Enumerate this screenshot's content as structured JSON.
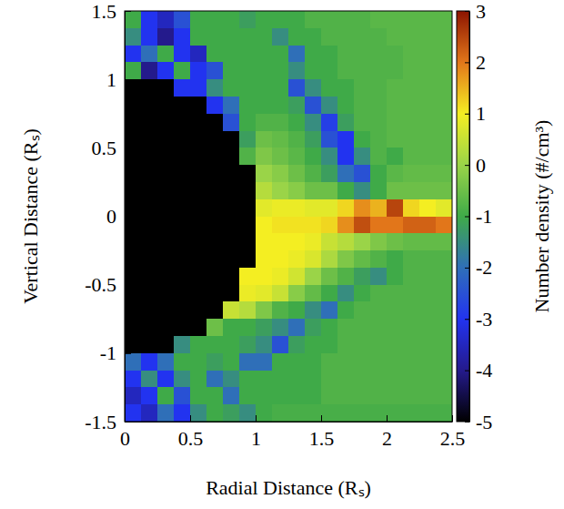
{
  "chart_data": {
    "type": "heatmap",
    "x_label": "Radial Distance (Rₛ)",
    "y_label": "Vertical Distance (Rₛ)",
    "colorbar_label": "Number density (#/cm³)",
    "x": [
      0.0625,
      0.1875,
      0.3125,
      0.4375,
      0.5625,
      0.6875,
      0.8125,
      0.9375,
      1.0625,
      1.1875,
      1.3125,
      1.4375,
      1.5625,
      1.6875,
      1.8125,
      1.9375,
      2.0625,
      2.1875,
      2.3125,
      2.4375
    ],
    "y": [
      1.4375,
      1.3125,
      1.1875,
      1.0625,
      0.9375,
      0.8125,
      0.6875,
      0.5625,
      0.4375,
      0.3125,
      0.1875,
      0.0625,
      -0.0625,
      -0.1875,
      -0.3125,
      -0.4375,
      -0.5625,
      -0.6875,
      -0.8125,
      -0.9375,
      -1.0625,
      -1.1875,
      -1.3125,
      -1.4375
    ],
    "z": [
      [
        -1,
        -3,
        -3.5,
        -2.5,
        -1,
        -1,
        -1,
        -1.2,
        -1,
        -1,
        -1,
        -0.8,
        -0.8,
        -0.8,
        -0.8,
        -0.7,
        -0.7,
        -0.7,
        -0.7,
        -0.7
      ],
      [
        -1.5,
        -3,
        -4,
        -3,
        -1,
        -1,
        -1,
        -1,
        -1,
        -1.5,
        -1,
        -1,
        -0.8,
        -0.8,
        -0.8,
        -0.8,
        -0.7,
        -0.7,
        -0.7,
        -0.7
      ],
      [
        -3,
        -2,
        -1,
        -3,
        -3.5,
        -1,
        -1,
        -1,
        -1,
        -1,
        -2,
        -1,
        -1,
        -0.8,
        -0.8,
        -0.8,
        -0.8,
        -0.7,
        -0.7,
        -0.7
      ],
      [
        -1,
        -4,
        -3,
        -1,
        -3,
        -2.5,
        -1,
        -1,
        -1,
        -1,
        -1.5,
        -1,
        -1,
        -0.8,
        -0.8,
        -0.8,
        -0.8,
        -0.7,
        -0.7,
        -0.7
      ],
      [
        null,
        null,
        null,
        -3,
        -3,
        -1.5,
        -1,
        -1,
        -1,
        -1,
        -2.5,
        -1.5,
        -1,
        -1,
        -0.8,
        -0.8,
        -0.7,
        -0.7,
        -0.7,
        -0.7
      ],
      [
        null,
        null,
        null,
        null,
        null,
        -3,
        -2,
        -1,
        -1,
        -1,
        -1.2,
        -2.5,
        -1.5,
        -1,
        -0.8,
        -0.8,
        -0.7,
        -0.7,
        -0.7,
        -0.7
      ],
      [
        null,
        null,
        null,
        null,
        null,
        null,
        -2.5,
        -1,
        -0.8,
        -0.8,
        -1,
        -1.5,
        -2.8,
        -1.2,
        -0.8,
        -0.8,
        -0.7,
        -0.7,
        -0.7,
        -0.7
      ],
      [
        null,
        null,
        null,
        null,
        null,
        null,
        null,
        -1.2,
        -0.5,
        -0.6,
        -0.8,
        -1.2,
        -2.5,
        -3,
        -1,
        -0.8,
        -0.7,
        -0.7,
        -0.7,
        -0.7
      ],
      [
        null,
        null,
        null,
        null,
        null,
        null,
        null,
        -0.8,
        -0.3,
        -0.5,
        -0.7,
        -1,
        -1.5,
        -3,
        -1.5,
        -0.8,
        -1,
        -0.7,
        -0.7,
        -0.7
      ],
      [
        null,
        null,
        null,
        null,
        null,
        null,
        null,
        null,
        0,
        -0.2,
        -0.5,
        -0.8,
        -1.2,
        -2,
        -2.5,
        -1,
        -0.7,
        -0.6,
        -0.6,
        -0.6
      ],
      [
        null,
        null,
        null,
        null,
        null,
        null,
        null,
        null,
        0.3,
        0,
        -0.2,
        -0.5,
        -0.5,
        -1,
        -1.5,
        -1,
        -0.5,
        -0.5,
        -0.5,
        -0.5
      ],
      [
        null,
        null,
        null,
        null,
        null,
        null,
        null,
        null,
        0.8,
        0.9,
        0.9,
        0.8,
        0.8,
        1.2,
        1.8,
        1.5,
        2.5,
        1.2,
        1,
        0.8
      ],
      [
        null,
        null,
        null,
        null,
        null,
        null,
        null,
        null,
        1,
        1.1,
        1.1,
        1.1,
        1.2,
        1.8,
        2.4,
        2,
        2,
        2.2,
        2.2,
        2
      ],
      [
        null,
        null,
        null,
        null,
        null,
        null,
        null,
        null,
        1,
        1,
        1,
        0.9,
        0.5,
        0.3,
        0,
        -0.3,
        -0.5,
        -0.6,
        -0.6,
        -0.6
      ],
      [
        null,
        null,
        null,
        null,
        null,
        null,
        null,
        null,
        1,
        1,
        0.9,
        0.7,
        0.2,
        -0.3,
        -0.6,
        -0.8,
        -1,
        -0.8,
        -0.8,
        -0.8
      ],
      [
        null,
        null,
        null,
        null,
        null,
        null,
        null,
        1,
        1,
        0.9,
        0.6,
        0,
        -0.5,
        -0.8,
        -1.2,
        -1.5,
        -1,
        -0.8,
        -0.8,
        -0.8
      ],
      [
        null,
        null,
        null,
        null,
        null,
        null,
        null,
        0.9,
        0.8,
        0.5,
        -0.2,
        -0.6,
        -1,
        -1.5,
        -1,
        -0.8,
        -0.8,
        -0.8,
        -0.8,
        -0.8
      ],
      [
        null,
        null,
        null,
        null,
        null,
        null,
        0.5,
        0.3,
        -0.3,
        -0.8,
        -1,
        -1.5,
        -2,
        -1,
        -0.8,
        -0.8,
        -0.8,
        -0.8,
        -0.8,
        -0.8
      ],
      [
        null,
        null,
        null,
        null,
        null,
        -0.5,
        -1,
        -1,
        -1.2,
        -1.5,
        -2,
        -1.2,
        -1,
        -0.8,
        -0.8,
        -0.8,
        -0.8,
        -0.8,
        -0.8,
        -0.8
      ],
      [
        null,
        null,
        null,
        -1.5,
        -1,
        -1,
        -1,
        -1.2,
        -1.5,
        -2.5,
        -1.2,
        -1,
        -1,
        -0.8,
        -0.8,
        -0.8,
        -0.8,
        -0.8,
        -0.8,
        -0.8
      ],
      [
        -2,
        -3,
        -2,
        -1,
        -1,
        -1.2,
        -1,
        -2,
        -2,
        -1,
        -1,
        -1,
        -0.8,
        -0.8,
        -0.8,
        -0.8,
        -0.8,
        -0.8,
        -0.8,
        -0.8
      ],
      [
        -3,
        -1.5,
        -3,
        -1.5,
        -1,
        -2,
        -1.5,
        -1,
        -1,
        -1,
        -1,
        -1,
        -0.8,
        -0.8,
        -0.8,
        -0.8,
        -0.8,
        -0.8,
        -0.8,
        -0.8
      ],
      [
        -3.5,
        -3,
        -1,
        -2.5,
        -1,
        -1,
        -2,
        -1,
        -1,
        -1,
        -1,
        -1,
        -0.8,
        -0.8,
        -0.8,
        -0.8,
        -0.8,
        -0.8,
        -0.8,
        -0.8
      ],
      [
        -3,
        -3.5,
        -2,
        -3,
        -1.5,
        -1,
        -1.2,
        -1.5,
        -1,
        -0.9,
        -0.9,
        -0.9,
        -0.9,
        -0.9,
        -0.9,
        -0.9,
        -0.9,
        -0.9,
        -0.9,
        -0.9
      ]
    ],
    "xlim": [
      0,
      2.5
    ],
    "ylim": [
      -1.5,
      1.5
    ],
    "xticks": [
      0,
      0.5,
      1,
      1.5,
      2,
      2.5
    ],
    "yticks": [
      -1.5,
      -1,
      -0.5,
      0,
      0.5,
      1,
      1.5
    ],
    "clim": [
      -5,
      3
    ],
    "cticks": [
      -5,
      -4,
      -3,
      -2,
      -1,
      0,
      1,
      2,
      3
    ]
  }
}
